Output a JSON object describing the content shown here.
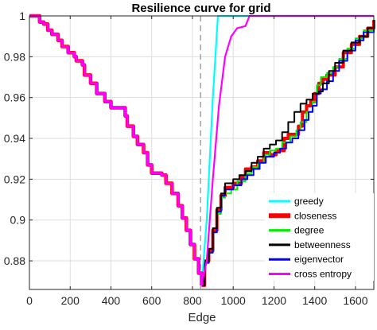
{
  "chart_data": {
    "type": "line",
    "title": "Resilience curve for grid",
    "xlabel": "Edge",
    "ylabel": "",
    "xlim": [
      0,
      1690
    ],
    "ylim": [
      0.866,
      1.0
    ],
    "xticks": [
      0,
      200,
      400,
      600,
      800,
      1000,
      1200,
      1400,
      1600
    ],
    "yticks": [
      0.88,
      0.9,
      0.92,
      0.94,
      0.96,
      0.98,
      1
    ],
    "xtick_labels": [
      "0",
      "200",
      "400",
      "600",
      "800",
      "1000",
      "1200",
      "1400",
      "1600"
    ],
    "ytick_labels": [
      "0.88",
      "0.9",
      "0.92",
      "0.94",
      "0.96",
      "0.98",
      "1"
    ],
    "grid": true,
    "legend_position": "bottom-right",
    "marker_x": 840,
    "shared_descent": [
      [
        0,
        1.0
      ],
      [
        10,
        1.0
      ],
      [
        40,
        1.0
      ],
      [
        50,
        0.997
      ],
      [
        70,
        0.996
      ],
      [
        90,
        0.993
      ],
      [
        110,
        0.991
      ],
      [
        140,
        0.988
      ],
      [
        160,
        0.985
      ],
      [
        190,
        0.982
      ],
      [
        220,
        0.98
      ],
      [
        230,
        0.978
      ],
      [
        260,
        0.976
      ],
      [
        270,
        0.971
      ],
      [
        300,
        0.967
      ],
      [
        330,
        0.962
      ],
      [
        350,
        0.962
      ],
      [
        370,
        0.958
      ],
      [
        400,
        0.955
      ],
      [
        440,
        0.955
      ],
      [
        470,
        0.951
      ],
      [
        480,
        0.946
      ],
      [
        510,
        0.941
      ],
      [
        530,
        0.937
      ],
      [
        560,
        0.933
      ],
      [
        580,
        0.927
      ],
      [
        600,
        0.923
      ],
      [
        630,
        0.923
      ],
      [
        650,
        0.922
      ],
      [
        670,
        0.918
      ],
      [
        700,
        0.913
      ],
      [
        730,
        0.907
      ],
      [
        750,
        0.901
      ],
      [
        770,
        0.895
      ],
      [
        790,
        0.888
      ],
      [
        810,
        0.881
      ],
      [
        830,
        0.874
      ],
      [
        845,
        0.868
      ]
    ],
    "series": [
      {
        "name": "greedy",
        "color": "#00ffff",
        "width": 2.2,
        "values": [
          [
            845,
            0.868
          ],
          [
            870,
            0.9
          ],
          [
            900,
            0.96
          ],
          [
            925,
            1.0
          ],
          [
            1690,
            1.0
          ]
        ]
      },
      {
        "name": "closeness",
        "color": "#ff0000",
        "width": 4,
        "values": [
          [
            845,
            0.868
          ],
          [
            860,
            0.88
          ],
          [
            880,
            0.885
          ],
          [
            900,
            0.895
          ],
          [
            920,
            0.905
          ],
          [
            940,
            0.912
          ],
          [
            960,
            0.916
          ],
          [
            1000,
            0.918
          ],
          [
            1040,
            0.921
          ],
          [
            1060,
            0.925
          ],
          [
            1090,
            0.926
          ],
          [
            1120,
            0.929
          ],
          [
            1150,
            0.933
          ],
          [
            1180,
            0.932
          ],
          [
            1210,
            0.934
          ],
          [
            1250,
            0.94
          ],
          [
            1270,
            0.942
          ],
          [
            1300,
            0.942
          ],
          [
            1320,
            0.946
          ],
          [
            1340,
            0.953
          ],
          [
            1360,
            0.956
          ],
          [
            1380,
            0.958
          ],
          [
            1400,
            0.962
          ],
          [
            1420,
            0.967
          ],
          [
            1440,
            0.969
          ],
          [
            1460,
            0.971
          ],
          [
            1500,
            0.975
          ],
          [
            1540,
            0.982
          ],
          [
            1580,
            0.986
          ],
          [
            1620,
            0.99
          ],
          [
            1660,
            0.994
          ],
          [
            1690,
            0.998
          ]
        ]
      },
      {
        "name": "degree",
        "color": "#00ee00",
        "width": 2,
        "values": [
          [
            845,
            0.868
          ],
          [
            860,
            0.879
          ],
          [
            880,
            0.884
          ],
          [
            900,
            0.894
          ],
          [
            920,
            0.903
          ],
          [
            940,
            0.911
          ],
          [
            960,
            0.913
          ],
          [
            990,
            0.915
          ],
          [
            1020,
            0.919
          ],
          [
            1060,
            0.923
          ],
          [
            1090,
            0.926
          ],
          [
            1120,
            0.928
          ],
          [
            1150,
            0.932
          ],
          [
            1180,
            0.934
          ],
          [
            1210,
            0.935
          ],
          [
            1240,
            0.938
          ],
          [
            1280,
            0.941
          ],
          [
            1310,
            0.944
          ],
          [
            1330,
            0.948
          ],
          [
            1360,
            0.953
          ],
          [
            1390,
            0.958
          ],
          [
            1410,
            0.966
          ],
          [
            1430,
            0.97
          ],
          [
            1460,
            0.972
          ],
          [
            1490,
            0.975
          ],
          [
            1520,
            0.979
          ],
          [
            1560,
            0.984
          ],
          [
            1600,
            0.989
          ],
          [
            1640,
            0.993
          ],
          [
            1690,
            0.998
          ]
        ]
      },
      {
        "name": "betweenness",
        "color": "#000000",
        "width": 2,
        "values": [
          [
            845,
            0.868
          ],
          [
            860,
            0.88
          ],
          [
            880,
            0.886
          ],
          [
            900,
            0.896
          ],
          [
            920,
            0.906
          ],
          [
            940,
            0.913
          ],
          [
            960,
            0.918
          ],
          [
            1000,
            0.92
          ],
          [
            1030,
            0.922
          ],
          [
            1060,
            0.924
          ],
          [
            1090,
            0.928
          ],
          [
            1120,
            0.931
          ],
          [
            1150,
            0.935
          ],
          [
            1180,
            0.937
          ],
          [
            1210,
            0.939
          ],
          [
            1240,
            0.943
          ],
          [
            1270,
            0.948
          ],
          [
            1300,
            0.953
          ],
          [
            1330,
            0.957
          ],
          [
            1360,
            0.959
          ],
          [
            1390,
            0.962
          ],
          [
            1420,
            0.963
          ],
          [
            1440,
            0.967
          ],
          [
            1470,
            0.973
          ],
          [
            1500,
            0.977
          ],
          [
            1540,
            0.983
          ],
          [
            1580,
            0.987
          ],
          [
            1620,
            0.99
          ],
          [
            1660,
            0.994
          ],
          [
            1690,
            0.998
          ]
        ]
      },
      {
        "name": "eigenvector",
        "color": "#0000ff",
        "width": 2,
        "values": [
          [
            845,
            0.868
          ],
          [
            860,
            0.879
          ],
          [
            880,
            0.884
          ],
          [
            900,
            0.894
          ],
          [
            920,
            0.904
          ],
          [
            940,
            0.912
          ],
          [
            960,
            0.915
          ],
          [
            1000,
            0.917
          ],
          [
            1040,
            0.92
          ],
          [
            1070,
            0.922
          ],
          [
            1100,
            0.925
          ],
          [
            1130,
            0.928
          ],
          [
            1160,
            0.931
          ],
          [
            1200,
            0.933
          ],
          [
            1230,
            0.935
          ],
          [
            1260,
            0.938
          ],
          [
            1290,
            0.94
          ],
          [
            1320,
            0.944
          ],
          [
            1350,
            0.949
          ],
          [
            1370,
            0.953
          ],
          [
            1390,
            0.956
          ],
          [
            1410,
            0.962
          ],
          [
            1430,
            0.964
          ],
          [
            1460,
            0.968
          ],
          [
            1490,
            0.973
          ],
          [
            1520,
            0.978
          ],
          [
            1560,
            0.983
          ],
          [
            1600,
            0.988
          ],
          [
            1640,
            0.992
          ],
          [
            1690,
            0.997
          ]
        ]
      },
      {
        "name": "cross entropy",
        "color": "#ff00ff",
        "width": 2.2,
        "values": [
          [
            845,
            0.868
          ],
          [
            870,
            0.88
          ],
          [
            900,
            0.92
          ],
          [
            930,
            0.956
          ],
          [
            960,
            0.98
          ],
          [
            990,
            0.99
          ],
          [
            1020,
            0.994
          ],
          [
            1060,
            0.995
          ],
          [
            1080,
            1.0
          ],
          [
            1690,
            1.0
          ]
        ]
      }
    ]
  }
}
